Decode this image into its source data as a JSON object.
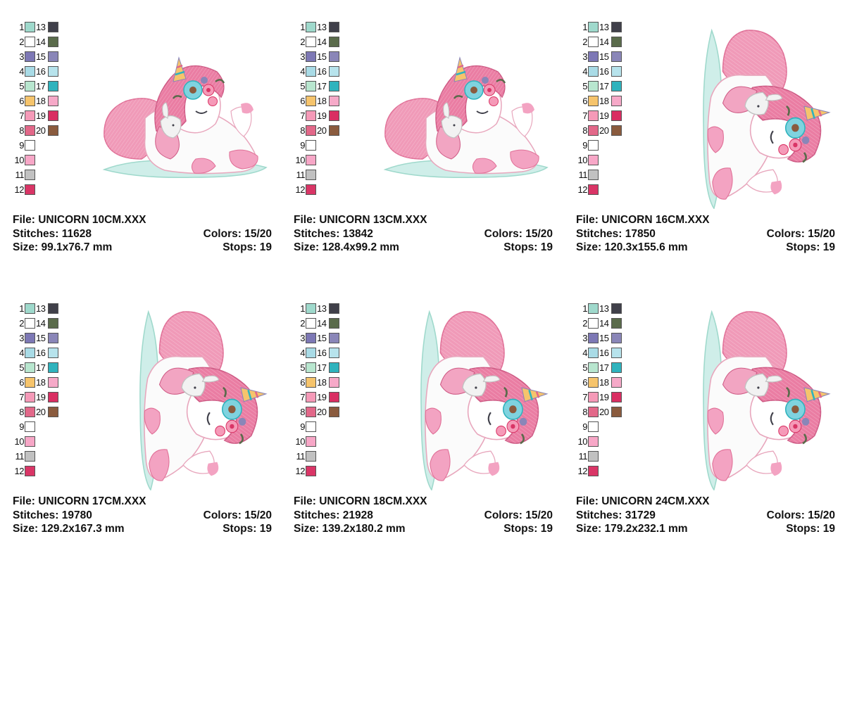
{
  "palette_colors": {
    "1": "#9fd9cc",
    "2": "#ffffff",
    "3": "#7d78b5",
    "4": "#a9dbe6",
    "5": "#b8e6cf",
    "6": "#f6c46c",
    "7": "#f59ab8",
    "8": "#e26889",
    "9": "#ffffff",
    "10": "#f7a7c7",
    "11": "#c1c1c1",
    "12": "#d93566",
    "13": "#40404a",
    "14": "#5a6b4b",
    "15": "#8a86b8",
    "16": "#b7e3ec",
    "17": "#2fb3bd",
    "18": "#f6a9c8",
    "19": "#d92e62",
    "20": "#8a5b3e"
  },
  "palette_labels": [
    "1",
    "2",
    "3",
    "4",
    "5",
    "6",
    "7",
    "8",
    "9",
    "10",
    "11",
    "12",
    "13",
    "14",
    "15",
    "16",
    "17",
    "18",
    "19",
    "20"
  ],
  "labels": {
    "file": "File:",
    "stitches": "Stitches:",
    "size": "Size:",
    "colors": "Colors:",
    "stops": "Stops:"
  },
  "sheets": [
    {
      "file": "UNICORN 10CM.XXX",
      "stitches": "11628",
      "size": "99.1x76.7 mm",
      "colors": "15/20",
      "stops": "19"
    },
    {
      "file": "UNICORN 13CM.XXX",
      "stitches": "13842",
      "size": "128.4x99.2 mm",
      "colors": "15/20",
      "stops": "19"
    },
    {
      "file": "UNICORN 16CM.XXX",
      "stitches": "17850",
      "size": "120.3x155.6 mm",
      "colors": "15/20",
      "stops": "19"
    },
    {
      "file": "UNICORN 17CM.XXX",
      "stitches": "19780",
      "size": "129.2x167.3 mm",
      "colors": "15/20",
      "stops": "19"
    },
    {
      "file": "UNICORN 18CM.XXX",
      "stitches": "21928",
      "size": "139.2x180.2 mm",
      "colors": "15/20",
      "stops": "19"
    },
    {
      "file": "UNICORN 24CM.XXX",
      "stitches": "31729",
      "size": "179.2x232.1 mm",
      "colors": "15/20",
      "stops": "19"
    }
  ]
}
